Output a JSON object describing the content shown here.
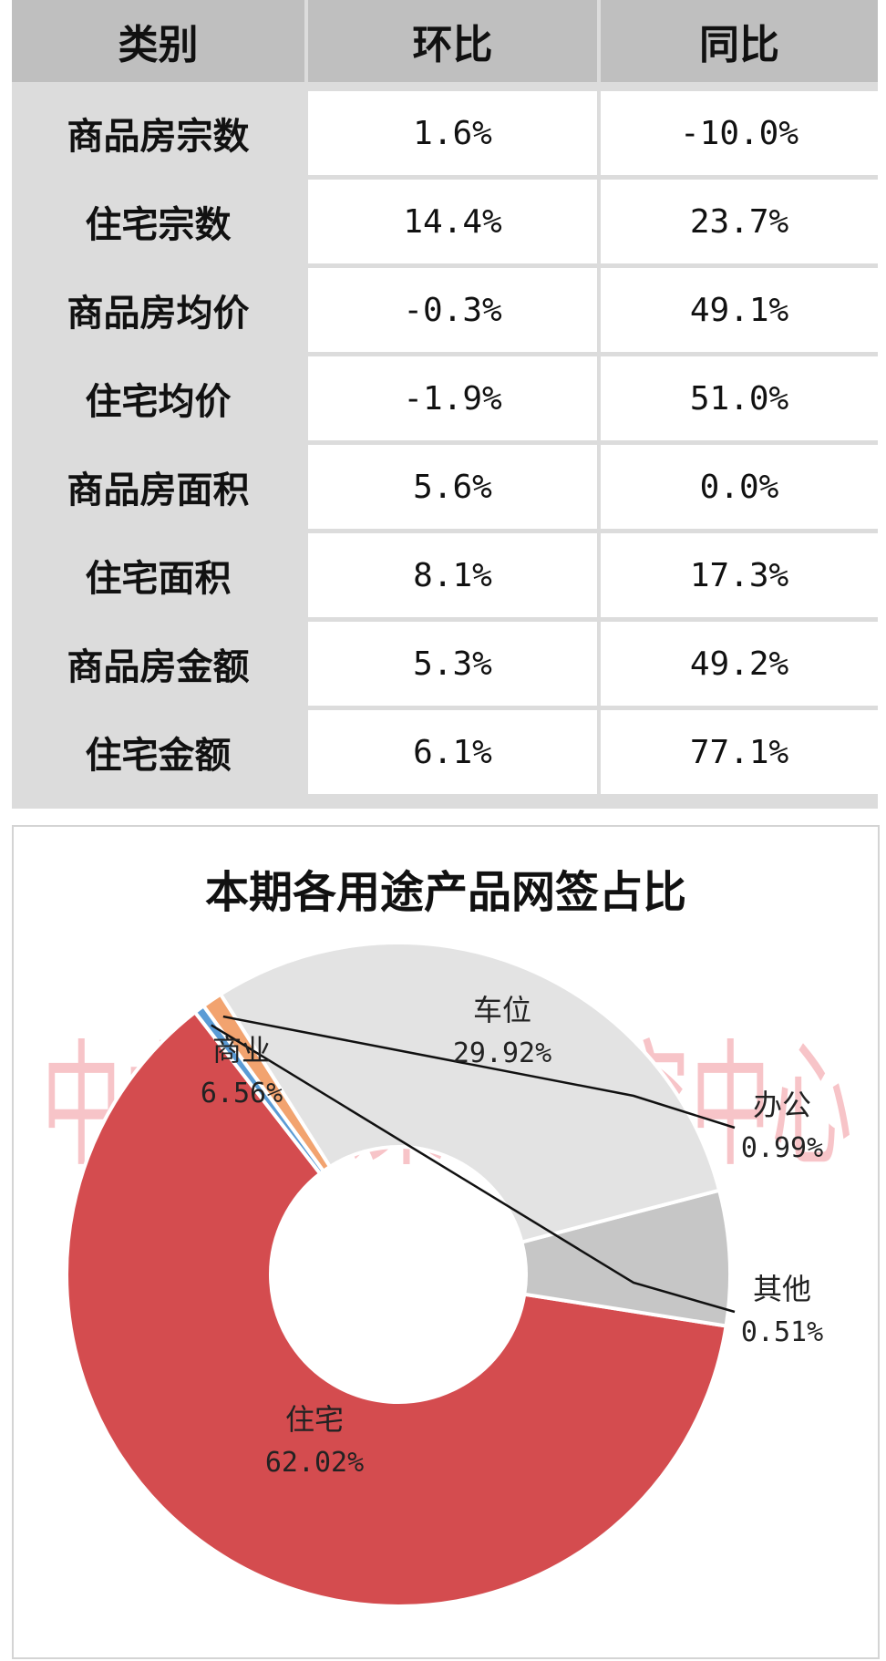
{
  "table": {
    "headers": [
      "类别",
      "环比",
      "同比"
    ],
    "rows": [
      [
        "商品房宗数",
        "1.6%",
        "-10.0%"
      ],
      [
        "住宅宗数",
        "14.4%",
        "23.7%"
      ],
      [
        "商品房均价",
        "-0.3%",
        "49.1%"
      ],
      [
        "住宅均价",
        "-1.9%",
        "51.0%"
      ],
      [
        "商品房面积",
        "5.6%",
        "0.0%"
      ],
      [
        "住宅面积",
        "8.1%",
        "17.3%"
      ],
      [
        "商品房金额",
        "5.3%",
        "49.2%"
      ],
      [
        "住宅金额",
        "6.1%",
        "77.1%"
      ]
    ]
  },
  "watermark": "中山中原策略研究中心",
  "chart_data": {
    "type": "pie",
    "title": "本期各用途产品网签占比",
    "labels": [
      "住宅",
      "商业",
      "车位",
      "办公",
      "其他"
    ],
    "values": [
      62.02,
      6.56,
      29.92,
      0.99,
      0.51
    ],
    "value_labels": [
      "62.02%",
      "6.56%",
      "29.92%",
      "0.99%",
      "0.51%"
    ],
    "colors": [
      "#d44c4f",
      "#c6c6c6",
      "#e3e3e3",
      "#f2a36f",
      "#5b9bd5"
    ],
    "donut": true
  }
}
